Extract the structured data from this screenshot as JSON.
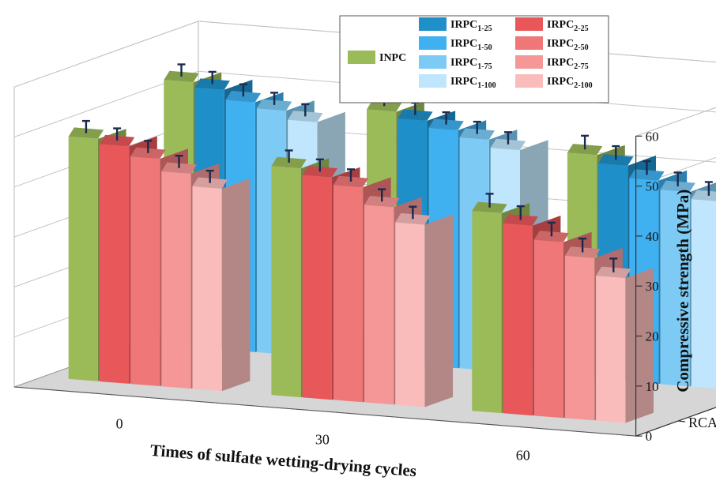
{
  "chart_data": {
    "type": "bar",
    "subtype": "3d-grouped",
    "title": "",
    "xlabel": "Times of sulfate wetting-drying cycles",
    "ylabel": "Compressive strength (MPa)",
    "ylim": [
      0,
      60
    ],
    "yticks": [
      0,
      10,
      20,
      30,
      40,
      50,
      60
    ],
    "categories": [
      "0",
      "30",
      "60"
    ],
    "depth_labels": [
      {
        "text": "RCA",
        "sub": "1"
      },
      {
        "text": "RCA",
        "sub": "2"
      }
    ],
    "grid": true,
    "legend_position": "top-right",
    "rows": [
      {
        "depth_label": "RCA1",
        "series": [
          {
            "name": "INPC",
            "label": "INPC",
            "sub": "",
            "color": "#9bbb59",
            "values": [
              53.0,
              50.3,
              44.8
            ],
            "errors": [
              1.5,
              1.5,
              1.8
            ]
          },
          {
            "name": "IRPC1-25",
            "label": "IRPC",
            "sub": "1-25",
            "color": "#1f8fc9",
            "values": [
              52.0,
              49.0,
              43.2
            ],
            "errors": [
              1.5,
              1.5,
              1.8
            ]
          },
          {
            "name": "IRPC1-50",
            "label": "IRPC",
            "sub": "1-50",
            "color": "#3fb0f0",
            "values": [
              50.0,
              47.6,
              40.7
            ],
            "errors": [
              1.5,
              1.5,
              1.8
            ]
          },
          {
            "name": "IRPC1-75",
            "label": "IRPC",
            "sub": "1-75",
            "color": "#7dcbf5",
            "values": [
              48.8,
              46.2,
              38.9
            ],
            "errors": [
              1.5,
              1.5,
              1.8
            ]
          },
          {
            "name": "IRPC1-100",
            "label": "IRPC",
            "sub": "1-100",
            "color": "#bfe6fc",
            "values": [
              47.0,
              44.6,
              37.5
            ],
            "errors": [
              1.5,
              1.5,
              1.8
            ]
          }
        ]
      },
      {
        "depth_label": "RCA2",
        "series": [
          {
            "name": "INPC",
            "label": "INPC",
            "sub": "",
            "color": "#9bbb59",
            "values": [
              48.5,
              45.8,
              40.0
            ],
            "errors": [
              1.5,
              1.5,
              1.8
            ]
          },
          {
            "name": "IRPC2-25",
            "label": "IRPC",
            "sub": "2-25",
            "color": "#e8575a",
            "values": [
              47.5,
              44.5,
              38.0
            ],
            "errors": [
              1.5,
              1.5,
              1.8
            ]
          },
          {
            "name": "IRPC2-50",
            "label": "IRPC",
            "sub": "2-50",
            "color": "#ef7778",
            "values": [
              45.5,
              43.0,
              35.2
            ],
            "errors": [
              1.5,
              1.5,
              1.8
            ]
          },
          {
            "name": "IRPC2-75",
            "label": "IRPC",
            "sub": "2-75",
            "color": "#f69797",
            "values": [
              43.0,
              39.5,
              32.5
            ],
            "errors": [
              1.5,
              1.5,
              1.8
            ]
          },
          {
            "name": "IRPC2-100",
            "label": "IRPC",
            "sub": "2-100",
            "color": "#fabbbb",
            "values": [
              40.5,
              36.5,
              29.0
            ],
            "errors": [
              1.5,
              1.5,
              1.8
            ]
          }
        ]
      }
    ],
    "legend": [
      {
        "label": "INPC",
        "sub": "",
        "color": "#9bbb59"
      },
      {
        "label": "IRPC",
        "sub": "1-25",
        "color": "#1f8fc9"
      },
      {
        "label": "IRPC",
        "sub": "1-50",
        "color": "#3fb0f0"
      },
      {
        "label": "IRPC",
        "sub": "1-75",
        "color": "#7dcbf5"
      },
      {
        "label": "IRPC",
        "sub": "1-100",
        "color": "#bfe6fc"
      },
      {
        "label": "IRPC",
        "sub": "2-25",
        "color": "#e8575a"
      },
      {
        "label": "IRPC",
        "sub": "2-50",
        "color": "#ef7778"
      },
      {
        "label": "IRPC",
        "sub": "2-75",
        "color": "#f69797"
      },
      {
        "label": "IRPC",
        "sub": "2-100",
        "color": "#fabbbb"
      }
    ]
  }
}
